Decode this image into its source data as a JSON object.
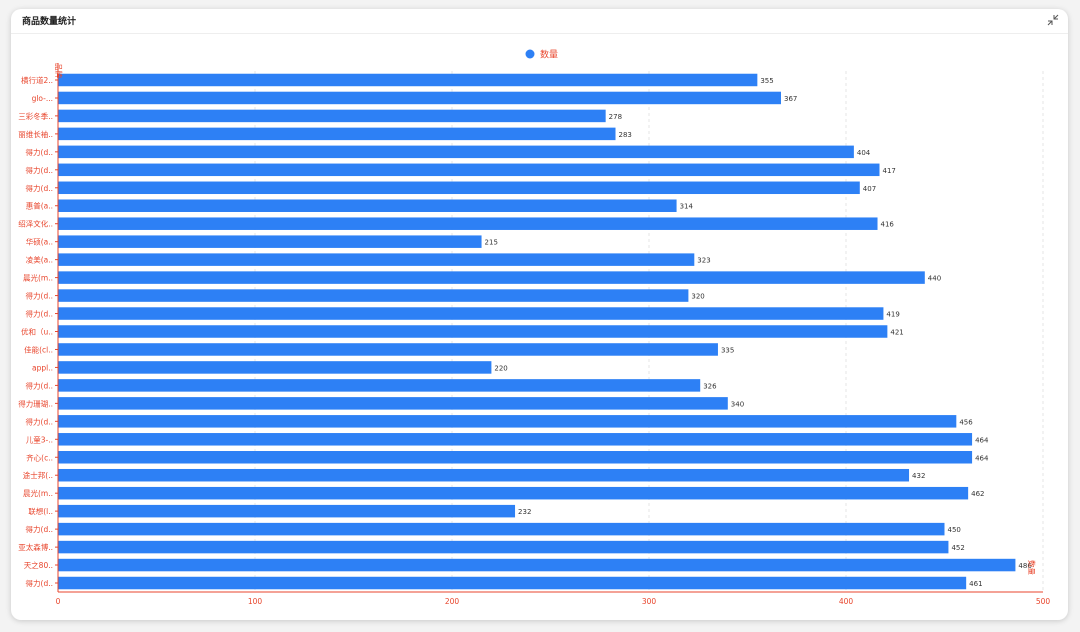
{
  "card": {
    "title": "商品数量统计",
    "collapse_icon": "collapse-arrows-icon"
  },
  "colors": {
    "bar": "#2d80f5",
    "axis": "#e8452c",
    "grid": "#e6e6e6"
  },
  "chart_data": {
    "type": "bar",
    "orientation": "horizontal",
    "legend": {
      "entries": [
        "数量"
      ],
      "placement": "top-center"
    },
    "y_axis_name": "品牌",
    "x_axis_name": "数量",
    "categories": [
      "横行道2..",
      "glo-...",
      "三彩冬季..",
      "丽维长袖..",
      "得力(d..",
      "得力(d..",
      "得力(d..",
      "惠普(a..",
      "绍泽文化..",
      "华硕(a..",
      "凌美(a..",
      "晨光(m..",
      "得力(d..",
      "得力(d..",
      "优和（u..",
      "佳能(cl..",
      "appl..",
      "得力(d..",
      "得力珊瑚..",
      "得力(d..",
      "儿童3-..",
      "齐心(c..",
      "途士邦(..",
      "晨光(m..",
      "联想(l..",
      "得力(d..",
      "亚太森博..",
      "天之80..",
      "得力(d.."
    ],
    "series": [
      {
        "name": "数量",
        "values": [
          355,
          367,
          278,
          283,
          404,
          417,
          407,
          314,
          416,
          215,
          323,
          440,
          320,
          419,
          421,
          335,
          220,
          326,
          340,
          456,
          464,
          464,
          432,
          462,
          232,
          450,
          452,
          486,
          461
        ]
      }
    ],
    "x_ticks": [
      0,
      100,
      200,
      300,
      400,
      500
    ],
    "xlim": [
      0,
      500
    ],
    "grid": true,
    "data_labels": true
  }
}
